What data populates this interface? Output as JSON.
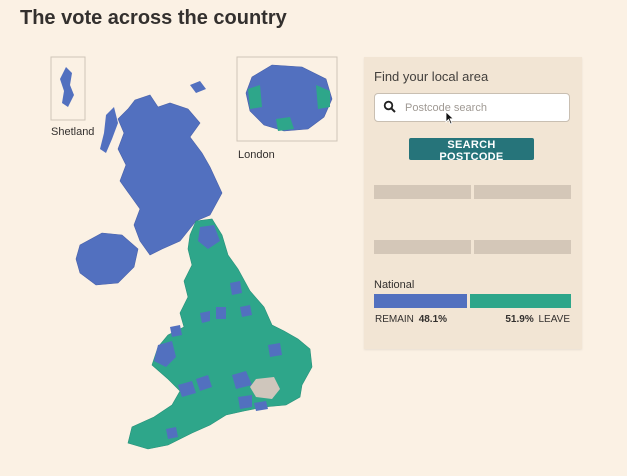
{
  "title": "The vote across the country",
  "insets": {
    "shetland_label": "Shetland",
    "london_label": "London"
  },
  "colors": {
    "remain": "#5270bf",
    "leave": "#2ea68a",
    "no_data": "#cfc6bc",
    "button": "#26747a"
  },
  "panel": {
    "heading": "Find your local area",
    "search_placeholder": "Postcode search",
    "search_icon": "search-icon",
    "button_label": "SEARCH POSTCODE",
    "national_label": "National",
    "remain_label": "REMAIN",
    "remain_value": "48.1%",
    "leave_label": "LEAVE",
    "leave_value": "51.9%",
    "remain_share": 48.1,
    "leave_share": 51.9
  }
}
